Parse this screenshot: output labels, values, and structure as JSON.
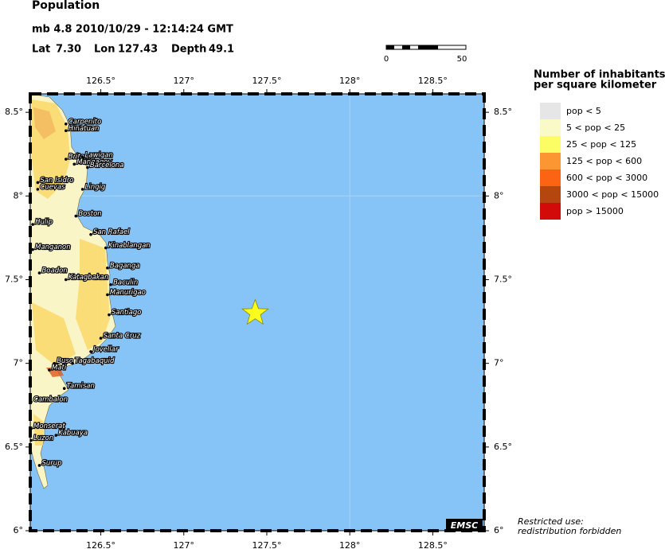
{
  "header": {
    "title": "Population",
    "event": "mb 4.8  2010/10/29 - 12:14:24 GMT",
    "lat_label": "Lat",
    "lat": {
      "value": 7.3,
      "label": "7.30"
    },
    "lon_label": "Lon",
    "lon": 127.43,
    "depth_label": "Depth",
    "depth": 49.1
  },
  "scale_bar": {
    "start": 0,
    "end": 50
  },
  "map": {
    "lon_range": [
      126.075,
      128.81
    ],
    "lat_range": [
      6,
      8.61
    ],
    "lon_ticks": [
      {
        "value": 126.5,
        "label": "126.5°"
      },
      {
        "value": 127,
        "label": "127°"
      },
      {
        "value": 127.5,
        "label": "127.5°"
      },
      {
        "value": 128,
        "label": "128°"
      },
      {
        "value": 128.5,
        "label": "128.5°"
      }
    ],
    "lat_ticks": [
      {
        "value": 8.5,
        "label": "8.5°"
      },
      {
        "value": 8,
        "label": "8°"
      },
      {
        "value": 7.5,
        "label": "7.5°"
      },
      {
        "value": 7,
        "label": "7°"
      },
      {
        "value": 6.5,
        "label": "6.5°"
      },
      {
        "value": 6,
        "label": "6°"
      }
    ],
    "grid_lon": [
      128
    ],
    "grid_lat": [
      8
    ],
    "places": [
      {
        "name": "Carpenito",
        "lon": 126.29,
        "lat": 8.43
      },
      {
        "name": "Hinatuan",
        "lon": 126.29,
        "lat": 8.39
      },
      {
        "name": "Britania",
        "lon": 126.29,
        "lat": 8.22
      },
      {
        "name": "Lawigan",
        "lon": 126.39,
        "lat": 8.23
      },
      {
        "name": "Mangagoy",
        "lon": 126.34,
        "lat": 8.19
      },
      {
        "name": "Barcelona",
        "lon": 126.42,
        "lat": 8.17
      },
      {
        "name": "San Isidro",
        "lon": 126.12,
        "lat": 8.08
      },
      {
        "name": "Cuevas",
        "lon": 126.12,
        "lat": 8.04
      },
      {
        "name": "Lingig",
        "lon": 126.39,
        "lat": 8.04
      },
      {
        "name": "Boston",
        "lon": 126.35,
        "lat": 7.88
      },
      {
        "name": "Hulip",
        "lon": 126.09,
        "lat": 7.83
      },
      {
        "name": "San Rafael",
        "lon": 126.44,
        "lat": 7.77
      },
      {
        "name": "Kinablangan",
        "lon": 126.53,
        "lat": 7.69
      },
      {
        "name": "Manganon",
        "lon": 126.09,
        "lat": 7.68
      },
      {
        "name": "Baganga",
        "lon": 126.54,
        "lat": 7.57
      },
      {
        "name": "Boadon",
        "lon": 126.13,
        "lat": 7.54
      },
      {
        "name": "Katagbakan",
        "lon": 126.29,
        "lat": 7.5
      },
      {
        "name": "Baculin",
        "lon": 126.56,
        "lat": 7.47
      },
      {
        "name": "Manurigao",
        "lon": 126.54,
        "lat": 7.41
      },
      {
        "name": "Santiago",
        "lon": 126.55,
        "lat": 7.29
      },
      {
        "name": "Santa Cruz",
        "lon": 126.5,
        "lat": 7.15
      },
      {
        "name": "Jovellar",
        "lon": 126.44,
        "lat": 7.07
      },
      {
        "name": "Buso",
        "lon": 126.22,
        "lat": 7.0
      },
      {
        "name": "Tagabaquid",
        "lon": 126.33,
        "lat": 7.0
      },
      {
        "name": "Mati",
        "lon": 126.19,
        "lat": 6.96
      },
      {
        "name": "Tamisan",
        "lon": 126.28,
        "lat": 6.85
      },
      {
        "name": "Cambalon",
        "lon": 126.08,
        "lat": 6.77
      },
      {
        "name": "Monserat",
        "lon": 126.08,
        "lat": 6.61
      },
      {
        "name": "Kabuaya",
        "lon": 126.23,
        "lat": 6.57
      },
      {
        "name": "Luzon",
        "lon": 126.08,
        "lat": 6.54
      },
      {
        "name": "Surup",
        "lon": 126.13,
        "lat": 6.39
      }
    ],
    "badge": "EMSC"
  },
  "legend": {
    "title_lines": [
      "Number of inhabitants",
      "per square kilometer"
    ],
    "items": [
      {
        "label": "pop < 5",
        "color": "#e6e6e6"
      },
      {
        "label": "5 < pop < 25",
        "color": "#fafac8"
      },
      {
        "label": "25 < pop < 125",
        "color": "#fcfc64"
      },
      {
        "label": "125 < pop < 600",
        "color": "#fc9632"
      },
      {
        "label": "600 < pop < 3000",
        "color": "#fc6414"
      },
      {
        "label": "3000 < pop < 15000",
        "color": "#b4460f"
      },
      {
        "label": "pop > 15000",
        "color": "#d20a0a"
      }
    ]
  },
  "notice": [
    "Restricted use:",
    "redistribution forbidden"
  ]
}
